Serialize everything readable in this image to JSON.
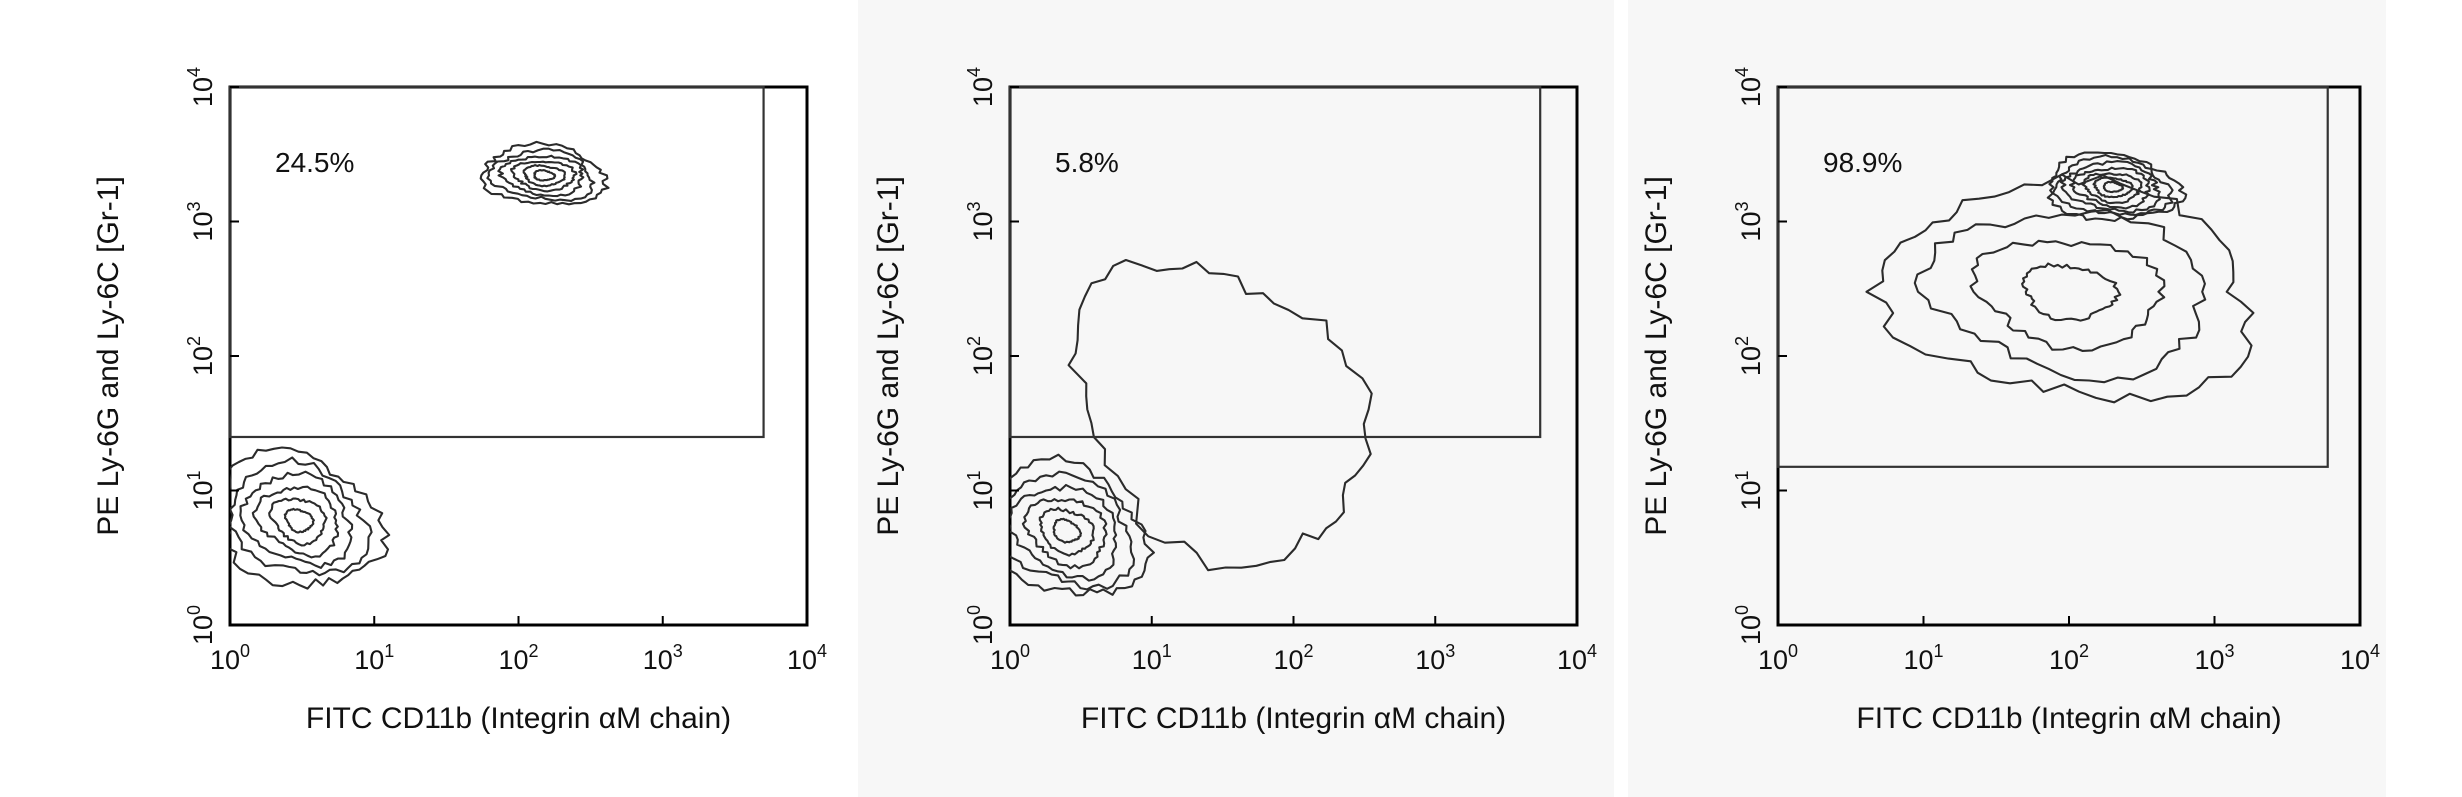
{
  "chart_data": [
    {
      "type": "contour",
      "panel": 1,
      "gate_percent_label": "24.5%",
      "xlabel": "FITC CD11b (Integrin αM chain)",
      "ylabel": "PE Ly-6G and Ly-6C [Gr-1]",
      "x_scale": "log",
      "y_scale": "log",
      "xlim": [
        1,
        10000
      ],
      "ylim": [
        1,
        10000
      ],
      "x_ticks": [
        {
          "base": "10",
          "exp": "0",
          "value": 1
        },
        {
          "base": "10",
          "exp": "1",
          "value": 10
        },
        {
          "base": "10",
          "exp": "2",
          "value": 100
        },
        {
          "base": "10",
          "exp": "3",
          "value": 1000
        },
        {
          "base": "10",
          "exp": "4",
          "value": 10000
        }
      ],
      "y_ticks": [
        {
          "base": "10",
          "exp": "0",
          "value": 1
        },
        {
          "base": "10",
          "exp": "1",
          "value": 10
        },
        {
          "base": "10",
          "exp": "2",
          "value": 100
        },
        {
          "base": "10",
          "exp": "3",
          "value": 1000
        },
        {
          "base": "10",
          "exp": "4",
          "value": 10000
        }
      ],
      "gate": {
        "x_min": 1,
        "x_max": 5000,
        "y_min": 25,
        "y_max": 10000
      },
      "populations": [
        {
          "center": [
            150,
            2200
          ],
          "spread": [
            0.42,
            0.22
          ],
          "rings": 6
        },
        {
          "center": [
            3,
            6
          ],
          "spread": [
            0.55,
            0.5
          ],
          "rings": 6
        }
      ],
      "background": "#ffffff"
    },
    {
      "type": "contour",
      "panel": 2,
      "gate_percent_label": "5.8%",
      "xlabel": "FITC CD11b (Integrin αM chain)",
      "ylabel": "PE Ly-6G and Ly-6C [Gr-1]",
      "x_scale": "log",
      "y_scale": "log",
      "xlim": [
        1,
        10000
      ],
      "ylim": [
        1,
        10000
      ],
      "x_ticks": [
        {
          "base": "10",
          "exp": "0",
          "value": 1
        },
        {
          "base": "10",
          "exp": "1",
          "value": 10
        },
        {
          "base": "10",
          "exp": "2",
          "value": 100
        },
        {
          "base": "10",
          "exp": "3",
          "value": 1000
        },
        {
          "base": "10",
          "exp": "4",
          "value": 10000
        }
      ],
      "y_ticks": [
        {
          "base": "10",
          "exp": "0",
          "value": 1
        },
        {
          "base": "10",
          "exp": "1",
          "value": 10
        },
        {
          "base": "10",
          "exp": "2",
          "value": 100
        },
        {
          "base": "10",
          "exp": "3",
          "value": 1000
        },
        {
          "base": "10",
          "exp": "4",
          "value": 10000
        }
      ],
      "gate": {
        "x_min": 1,
        "x_max": 5500,
        "y_min": 25,
        "y_max": 10000
      },
      "populations": [
        {
          "center": [
            2.5,
            5
          ],
          "spread": [
            0.55,
            0.5
          ],
          "rings": 6
        },
        {
          "center": [
            30,
            40
          ],
          "spread": [
            1.0,
            1.1
          ],
          "rings": 1
        }
      ],
      "background": "#f7f7f7"
    },
    {
      "type": "contour",
      "panel": 3,
      "gate_percent_label": "98.9%",
      "xlabel": "FITC CD11b (Integrin αM chain)",
      "ylabel": "PE Ly-6G and Ly-6C [Gr-1]",
      "x_scale": "log",
      "y_scale": "log",
      "xlim": [
        1,
        10000
      ],
      "ylim": [
        1,
        10000
      ],
      "x_ticks": [
        {
          "base": "10",
          "exp": "0",
          "value": 1
        },
        {
          "base": "10",
          "exp": "1",
          "value": 10
        },
        {
          "base": "10",
          "exp": "2",
          "value": 100
        },
        {
          "base": "10",
          "exp": "3",
          "value": 1000
        },
        {
          "base": "10",
          "exp": "4",
          "value": 10000
        }
      ],
      "y_ticks": [
        {
          "base": "10",
          "exp": "0",
          "value": 1
        },
        {
          "base": "10",
          "exp": "1",
          "value": 10
        },
        {
          "base": "10",
          "exp": "2",
          "value": 100
        },
        {
          "base": "10",
          "exp": "3",
          "value": 1000
        },
        {
          "base": "10",
          "exp": "4",
          "value": 10000
        }
      ],
      "gate": {
        "x_min": 1,
        "x_max": 6000,
        "y_min": 15,
        "y_max": 10000
      },
      "populations": [
        {
          "center": [
            200,
            1800
          ],
          "spread": [
            0.45,
            0.25
          ],
          "rings": 7
        },
        {
          "center": [
            100,
            300
          ],
          "spread": [
            1.25,
            0.8
          ],
          "rings": 4
        }
      ],
      "background": "#f7f7f7"
    }
  ]
}
